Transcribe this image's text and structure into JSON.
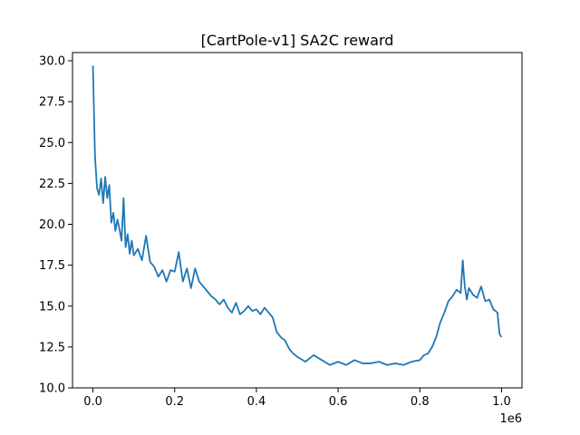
{
  "chart_data": {
    "type": "line",
    "title": "[CartPole-v1] SA2C reward",
    "xlabel": "",
    "ylabel": "",
    "x_offset_label": "1e6",
    "xlim": [
      -0.05,
      1.05
    ],
    "ylim": [
      10.0,
      30.5
    ],
    "x_ticks": [
      0.0,
      0.2,
      0.4,
      0.6,
      0.8,
      1.0
    ],
    "x_tick_labels": [
      "0.0",
      "0.2",
      "0.4",
      "0.6",
      "0.8",
      "1.0"
    ],
    "y_ticks": [
      10.0,
      12.5,
      15.0,
      17.5,
      20.0,
      22.5,
      25.0,
      27.5,
      30.0
    ],
    "y_tick_labels": [
      "10.0",
      "12.5",
      "15.0",
      "17.5",
      "20.0",
      "22.5",
      "25.0",
      "27.5",
      "30.0"
    ],
    "grid": false,
    "series": [
      {
        "color": "#1f77b4",
        "x": [
          0.0,
          0.005,
          0.01,
          0.015,
          0.02,
          0.025,
          0.03,
          0.035,
          0.04,
          0.045,
          0.05,
          0.055,
          0.06,
          0.065,
          0.07,
          0.075,
          0.08,
          0.085,
          0.09,
          0.095,
          0.1,
          0.11,
          0.12,
          0.13,
          0.14,
          0.15,
          0.16,
          0.17,
          0.18,
          0.19,
          0.2,
          0.21,
          0.22,
          0.23,
          0.24,
          0.25,
          0.26,
          0.27,
          0.28,
          0.29,
          0.3,
          0.31,
          0.32,
          0.33,
          0.34,
          0.35,
          0.36,
          0.37,
          0.38,
          0.39,
          0.4,
          0.41,
          0.42,
          0.43,
          0.44,
          0.45,
          0.46,
          0.47,
          0.48,
          0.49,
          0.5,
          0.52,
          0.54,
          0.56,
          0.58,
          0.6,
          0.62,
          0.64,
          0.66,
          0.68,
          0.7,
          0.72,
          0.74,
          0.76,
          0.78,
          0.8,
          0.81,
          0.82,
          0.83,
          0.84,
          0.85,
          0.86,
          0.87,
          0.88,
          0.89,
          0.9,
          0.905,
          0.91,
          0.915,
          0.92,
          0.93,
          0.94,
          0.95,
          0.96,
          0.97,
          0.98,
          0.99,
          0.995,
          1.0
        ],
        "y": [
          29.7,
          24.2,
          22.2,
          21.8,
          22.8,
          21.3,
          22.9,
          21.6,
          22.4,
          20.1,
          20.7,
          19.6,
          20.3,
          19.7,
          19.0,
          21.6,
          18.6,
          19.4,
          18.2,
          19.0,
          18.1,
          18.5,
          17.8,
          19.3,
          17.7,
          17.4,
          16.8,
          17.2,
          16.5,
          17.2,
          17.1,
          18.3,
          16.5,
          17.3,
          16.1,
          17.3,
          16.5,
          16.2,
          15.9,
          15.6,
          15.4,
          15.1,
          15.4,
          14.9,
          14.6,
          15.2,
          14.5,
          14.7,
          15.0,
          14.7,
          14.8,
          14.5,
          14.9,
          14.6,
          14.3,
          13.4,
          13.1,
          12.9,
          12.4,
          12.1,
          11.9,
          11.6,
          12.0,
          11.7,
          11.4,
          11.6,
          11.4,
          11.7,
          11.5,
          11.5,
          11.6,
          11.4,
          11.5,
          11.4,
          11.6,
          11.7,
          12.0,
          12.1,
          12.5,
          13.1,
          14.0,
          14.6,
          15.3,
          15.6,
          16.0,
          15.8,
          17.8,
          16.2,
          15.4,
          16.1,
          15.7,
          15.5,
          16.2,
          15.3,
          15.4,
          14.8,
          14.6,
          13.3,
          13.1
        ]
      }
    ]
  }
}
